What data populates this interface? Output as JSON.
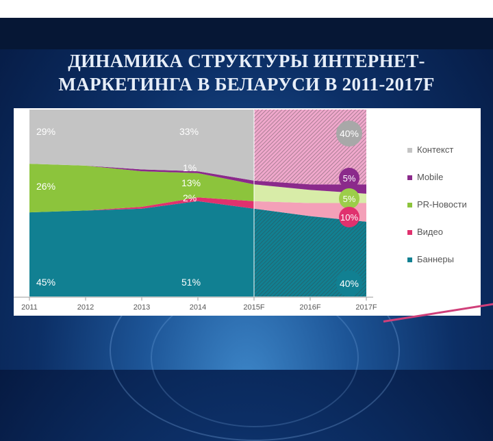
{
  "slide": {
    "title_line1": "ДИНАМИКА СТРУКТУРЫ ИНТЕРНЕТ-",
    "title_line2": "МАРКЕТИНГА В БЕЛАРУСИ В 2011-2017F"
  },
  "colors": {
    "context": "#c4c4c4",
    "mobile": "#8b2a8b",
    "pr_news": "#8cc43c",
    "video": "#e0316e",
    "banners": "#118092",
    "forecast_context": "#f0a8cc",
    "forecast_pr": "#d8eca8",
    "forecast_video": "#f4a0b8"
  },
  "chart_data": {
    "type": "area",
    "stacked": true,
    "normalized": true,
    "x": [
      "2011",
      "2012",
      "2013",
      "2014",
      "2015F",
      "2016F",
      "2017F"
    ],
    "series": [
      {
        "name": "Баннеры",
        "values": [
          45,
          46,
          47,
          51,
          47,
          43,
          40
        ],
        "color": "#118092"
      },
      {
        "name": "Видео",
        "values": [
          0,
          0,
          1,
          2,
          4,
          7,
          10
        ],
        "color": "#e0316e"
      },
      {
        "name": "PR-Новости",
        "values": [
          26,
          24,
          19,
          13,
          9,
          7,
          5
        ],
        "color": "#8cc43c"
      },
      {
        "name": "Mobile",
        "values": [
          0,
          0,
          1,
          1,
          2,
          3,
          5
        ],
        "color": "#8b2a8b"
      },
      {
        "name": "Контекст",
        "values": [
          29,
          30,
          32,
          33,
          38,
          40,
          40
        ],
        "color": "#c4c4c4"
      }
    ],
    "forecast_from": "2015F",
    "legend_position": "right",
    "grid": false,
    "data_labels": [
      {
        "x": "2011",
        "text": "29%",
        "series": "Контекст"
      },
      {
        "x": "2011",
        "text": "26%",
        "series": "PR-Новости"
      },
      {
        "x": "2011",
        "text": "45%",
        "series": "Баннеры"
      },
      {
        "x": "2014",
        "text": "33%",
        "series": "Контекст"
      },
      {
        "x": "2014",
        "text": "1%",
        "series": "Mobile"
      },
      {
        "x": "2014",
        "text": "13%",
        "series": "PR-Новости"
      },
      {
        "x": "2014",
        "text": "2%",
        "series": "Видео"
      },
      {
        "x": "2014",
        "text": "51%",
        "series": "Баннеры"
      },
      {
        "x": "2017F",
        "text": "40%",
        "series": "Контекст"
      },
      {
        "x": "2017F",
        "text": "5%",
        "series": "Mobile"
      },
      {
        "x": "2017F",
        "text": "5%",
        "series": "PR-Новости"
      },
      {
        "x": "2017F",
        "text": "10%",
        "series": "Видео"
      },
      {
        "x": "2017F",
        "text": "40%",
        "series": "Баннеры"
      }
    ],
    "legend": [
      "Контекст",
      "Mobile",
      "PR-Новости",
      "Видео",
      "Баннеры"
    ]
  }
}
